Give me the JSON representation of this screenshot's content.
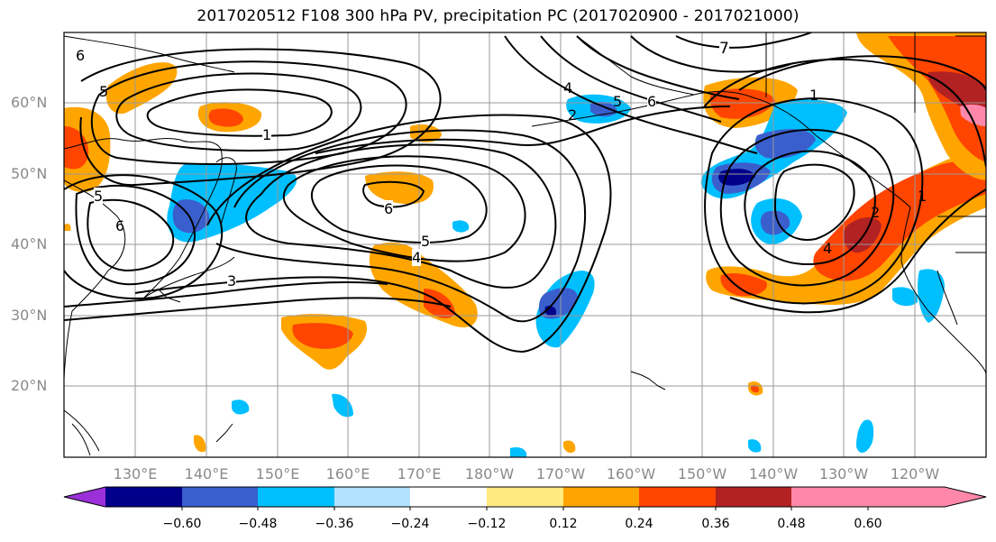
{
  "title": "2017020512 F108 300 hPa PV, precipitation PC (2017020900 - 2017021000)",
  "map": {
    "lat_labels": [
      "60°N",
      "50°N",
      "40°N",
      "30°N",
      "20°N"
    ],
    "lon_labels": [
      "130°E",
      "140°E",
      "150°E",
      "160°E",
      "170°E",
      "180°W",
      "170°W",
      "160°W",
      "150°W",
      "140°W",
      "130°W",
      "120°W"
    ],
    "pv_contour_labels": [
      "6",
      "5",
      "1",
      "5",
      "6",
      "3",
      "6",
      "5",
      "4",
      "4",
      "2",
      "5",
      "6",
      "7",
      "1",
      "1",
      "2",
      "4"
    ],
    "colors": {
      "neg_060": "#9b30d9",
      "neg_048": "#00008b",
      "neg_036": "#3a5fcd",
      "neg_024": "#00bfff",
      "neg_012": "#b2e2ff",
      "zero": "#ffffff",
      "pos_012": "#ffeb80",
      "pos_024": "#ffa500",
      "pos_036": "#ff4500",
      "pos_048": "#b22222",
      "pos_060": "#ff88aa"
    }
  },
  "colorbar": {
    "ticks": [
      "−0.60",
      "−0.48",
      "−0.36",
      "−0.24",
      "−0.12",
      "0.12",
      "0.24",
      "0.36",
      "0.48",
      "0.60"
    ],
    "bins": [
      "#9b30d9",
      "#00008b",
      "#3a5fcd",
      "#00bfff",
      "#b2e2ff",
      "#ffffff",
      "#ffeb80",
      "#ffa500",
      "#ff4500",
      "#b22222",
      "#ff88aa"
    ]
  }
}
